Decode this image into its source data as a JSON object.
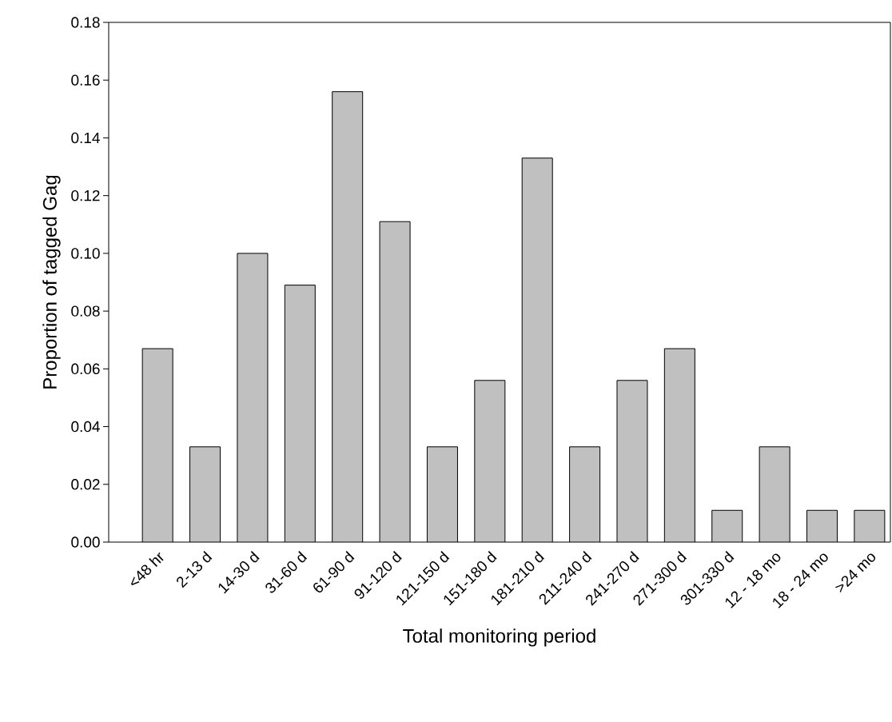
{
  "chart_data": {
    "type": "bar",
    "xlabel": "Total monitoring period",
    "ylabel": "Proportion of tagged Gag",
    "categories": [
      "<48 hr",
      "2-13 d",
      "14-30 d",
      "31-60 d",
      "61-90 d",
      "91-120 d",
      "121-150 d",
      "151-180 d",
      "181-210 d",
      "211-240 d",
      "241-270 d",
      "271-300 d",
      "301-330 d",
      "12 - 18 mo",
      "18 - 24 mo",
      ">24 mo"
    ],
    "values": [
      0.067,
      0.033,
      0.1,
      0.089,
      0.156,
      0.111,
      0.033,
      0.056,
      0.133,
      0.033,
      0.056,
      0.067,
      0.011,
      0.033,
      0.011,
      0.011
    ],
    "color": "#c0c0c0",
    "ylim": [
      0,
      0.18
    ],
    "yticks": [
      {
        "value": 0,
        "label": "0.00"
      },
      {
        "value": 0.02,
        "label": "0.02"
      },
      {
        "value": 0.04,
        "label": "0.04"
      },
      {
        "value": 0.06,
        "label": "0.06"
      },
      {
        "value": 0.08,
        "label": "0.08"
      },
      {
        "value": 0.1,
        "label": "0.10"
      },
      {
        "value": 0.12,
        "label": "0.12"
      },
      {
        "value": 0.14,
        "label": "0.14"
      },
      {
        "value": 0.16,
        "label": "0.16"
      },
      {
        "value": 0.18,
        "label": "0.18"
      }
    ]
  }
}
